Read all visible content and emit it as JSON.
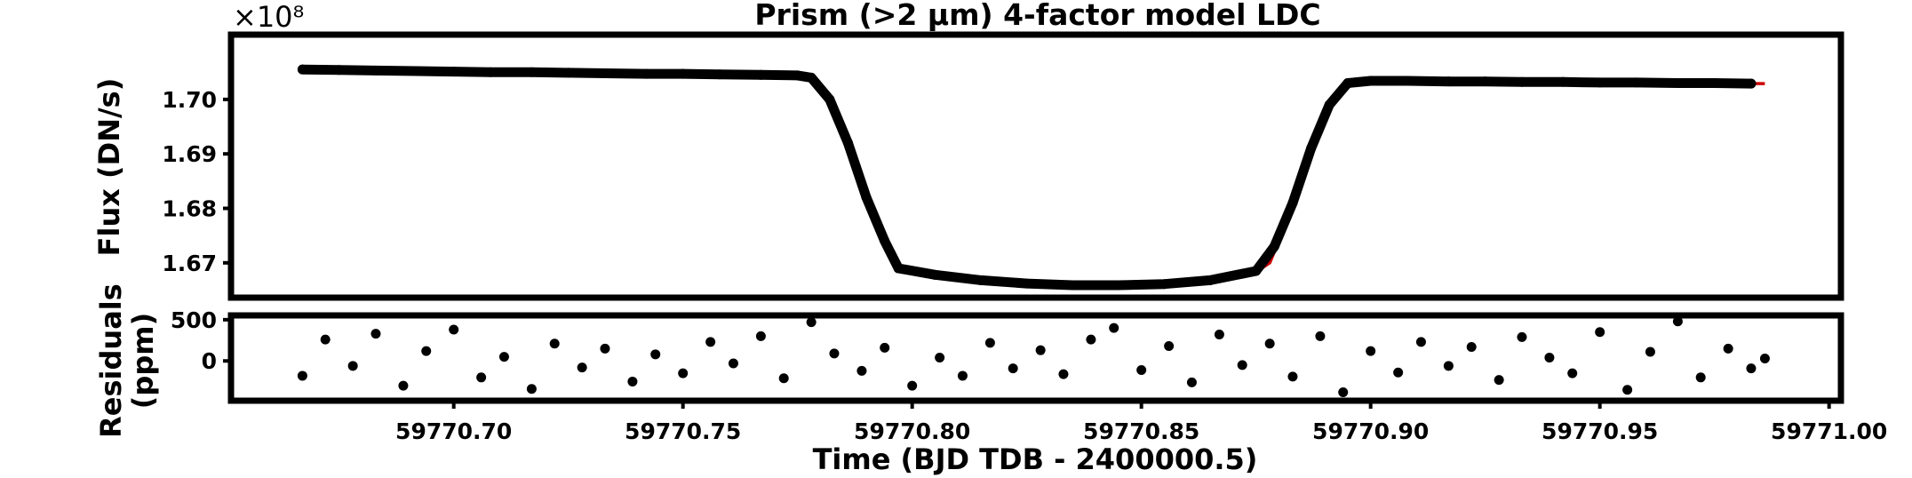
{
  "chart_data": [
    {
      "type": "scatter",
      "panel": "light-curve",
      "title": "Prism (>2 µm) 4-factor model LDC",
      "offset_label": "×10⁸",
      "ylabel": "Flux (DN/s)",
      "xlim": [
        59770.652,
        59771.002
      ],
      "ylim": [
        1.6641,
        1.7114
      ],
      "y_unit_multiplier": 100000000,
      "yticks": [
        1.67,
        1.68,
        1.69,
        1.7
      ],
      "ytick_labels": [
        "1.67",
        "1.68",
        "1.69",
        "1.70"
      ],
      "series": [
        {
          "kind": "points",
          "color": "#000000",
          "points": [
            [
              59770.667,
              1.7055
            ],
            [
              59770.675,
              1.7054
            ],
            [
              59770.683,
              1.7053
            ],
            [
              59770.692,
              1.7052
            ],
            [
              59770.7,
              1.7051
            ],
            [
              59770.708,
              1.705
            ],
            [
              59770.717,
              1.705
            ],
            [
              59770.725,
              1.7049
            ],
            [
              59770.733,
              1.7048
            ],
            [
              59770.742,
              1.7047
            ],
            [
              59770.75,
              1.7047
            ],
            [
              59770.758,
              1.7046
            ],
            [
              59770.767,
              1.7045
            ],
            [
              59770.775,
              1.7044
            ],
            [
              59770.778,
              1.704
            ],
            [
              59770.782,
              1.7
            ],
            [
              59770.786,
              1.692
            ],
            [
              59770.79,
              1.682
            ],
            [
              59770.794,
              1.674
            ],
            [
              59770.797,
              1.669
            ],
            [
              59770.805,
              1.6678
            ],
            [
              59770.815,
              1.6668
            ],
            [
              59770.825,
              1.6662
            ],
            [
              59770.835,
              1.6659
            ],
            [
              59770.845,
              1.6659
            ],
            [
              59770.855,
              1.6661
            ],
            [
              59770.865,
              1.6668
            ],
            [
              59770.875,
              1.6685
            ],
            [
              59770.879,
              1.673
            ],
            [
              59770.883,
              1.681
            ],
            [
              59770.887,
              1.691
            ],
            [
              59770.891,
              1.699
            ],
            [
              59770.895,
              1.703
            ],
            [
              59770.9,
              1.7034
            ],
            [
              59770.908,
              1.7034
            ],
            [
              59770.917,
              1.7033
            ],
            [
              59770.925,
              1.7033
            ],
            [
              59770.933,
              1.7032
            ],
            [
              59770.942,
              1.7032
            ],
            [
              59770.95,
              1.7031
            ],
            [
              59770.958,
              1.7031
            ],
            [
              59770.967,
              1.703
            ],
            [
              59770.975,
              1.703
            ],
            [
              59770.983,
              1.7029
            ]
          ]
        },
        {
          "kind": "model-line",
          "color": "#cc0000",
          "points": [
            [
              59770.667,
              1.7055
            ],
            [
              59770.7,
              1.7051
            ],
            [
              59770.733,
              1.7048
            ],
            [
              59770.767,
              1.7045
            ],
            [
              59770.776,
              1.7044
            ],
            [
              59770.779,
              1.703
            ],
            [
              59770.783,
              1.6985
            ],
            [
              59770.787,
              1.6905
            ],
            [
              59770.791,
              1.681
            ],
            [
              59770.795,
              1.673
            ],
            [
              59770.798,
              1.6688
            ],
            [
              59770.805,
              1.6678
            ],
            [
              59770.815,
              1.6668
            ],
            [
              59770.825,
              1.6662
            ],
            [
              59770.835,
              1.6659
            ],
            [
              59770.845,
              1.6659
            ],
            [
              59770.855,
              1.6661
            ],
            [
              59770.865,
              1.6668
            ],
            [
              59770.875,
              1.6683
            ],
            [
              59770.878,
              1.67
            ],
            [
              59770.881,
              1.676
            ],
            [
              59770.885,
              1.685
            ],
            [
              59770.889,
              1.695
            ],
            [
              59770.893,
              1.701
            ],
            [
              59770.897,
              1.7033
            ],
            [
              59770.917,
              1.7033
            ],
            [
              59770.95,
              1.7031
            ],
            [
              59770.986,
              1.7029
            ]
          ]
        }
      ]
    },
    {
      "type": "scatter",
      "panel": "residuals",
      "ylabel_line1": "Residuals",
      "ylabel_line2": "(ppm)",
      "xlabel": "Time (BJD TDB - 2400000.5)",
      "xlim": [
        59770.652,
        59771.002
      ],
      "ylim": [
        -450,
        520
      ],
      "yticks": [
        0,
        500
      ],
      "ytick_labels": [
        "0",
        "500"
      ],
      "xticks": [
        59770.7,
        59770.75,
        59770.8,
        59770.85,
        59770.9,
        59770.95,
        59771.0
      ],
      "xtick_labels": [
        "59770.70",
        "59770.75",
        "59770.80",
        "59770.85",
        "59770.90",
        "59770.95",
        "59771.00"
      ],
      "series": [
        {
          "kind": "points",
          "color": "#000000",
          "points": [
            [
              59770.667,
              -180
            ],
            [
              59770.672,
              260
            ],
            [
              59770.678,
              -60
            ],
            [
              59770.683,
              330
            ],
            [
              59770.689,
              -300
            ],
            [
              59770.694,
              120
            ],
            [
              59770.7,
              380
            ],
            [
              59770.706,
              -200
            ],
            [
              59770.711,
              50
            ],
            [
              59770.717,
              -340
            ],
            [
              59770.722,
              210
            ],
            [
              59770.728,
              -80
            ],
            [
              59770.733,
              150
            ],
            [
              59770.739,
              -250
            ],
            [
              59770.744,
              80
            ],
            [
              59770.75,
              -150
            ],
            [
              59770.756,
              230
            ],
            [
              59770.761,
              -30
            ],
            [
              59770.767,
              300
            ],
            [
              59770.772,
              -210
            ],
            [
              59770.778,
              470
            ],
            [
              59770.783,
              90
            ],
            [
              59770.789,
              -120
            ],
            [
              59770.794,
              160
            ],
            [
              59770.8,
              -300
            ],
            [
              59770.806,
              40
            ],
            [
              59770.811,
              -180
            ],
            [
              59770.817,
              220
            ],
            [
              59770.822,
              -90
            ],
            [
              59770.828,
              130
            ],
            [
              59770.833,
              -160
            ],
            [
              59770.839,
              260
            ],
            [
              59770.844,
              400
            ],
            [
              59770.85,
              -110
            ],
            [
              59770.856,
              180
            ],
            [
              59770.861,
              -260
            ],
            [
              59770.867,
              320
            ],
            [
              59770.872,
              -50
            ],
            [
              59770.878,
              210
            ],
            [
              59770.883,
              -190
            ],
            [
              59770.889,
              300
            ],
            [
              59770.894,
              -380
            ],
            [
              59770.9,
              120
            ],
            [
              59770.906,
              -140
            ],
            [
              59770.911,
              230
            ],
            [
              59770.917,
              -60
            ],
            [
              59770.922,
              170
            ],
            [
              59770.928,
              -230
            ],
            [
              59770.933,
              290
            ],
            [
              59770.939,
              40
            ],
            [
              59770.944,
              -150
            ],
            [
              59770.95,
              350
            ],
            [
              59770.956,
              -350
            ],
            [
              59770.961,
              110
            ],
            [
              59770.967,
              480
            ],
            [
              59770.972,
              -200
            ],
            [
              59770.978,
              150
            ],
            [
              59770.983,
              -90
            ],
            [
              59770.986,
              30
            ]
          ]
        }
      ]
    }
  ]
}
